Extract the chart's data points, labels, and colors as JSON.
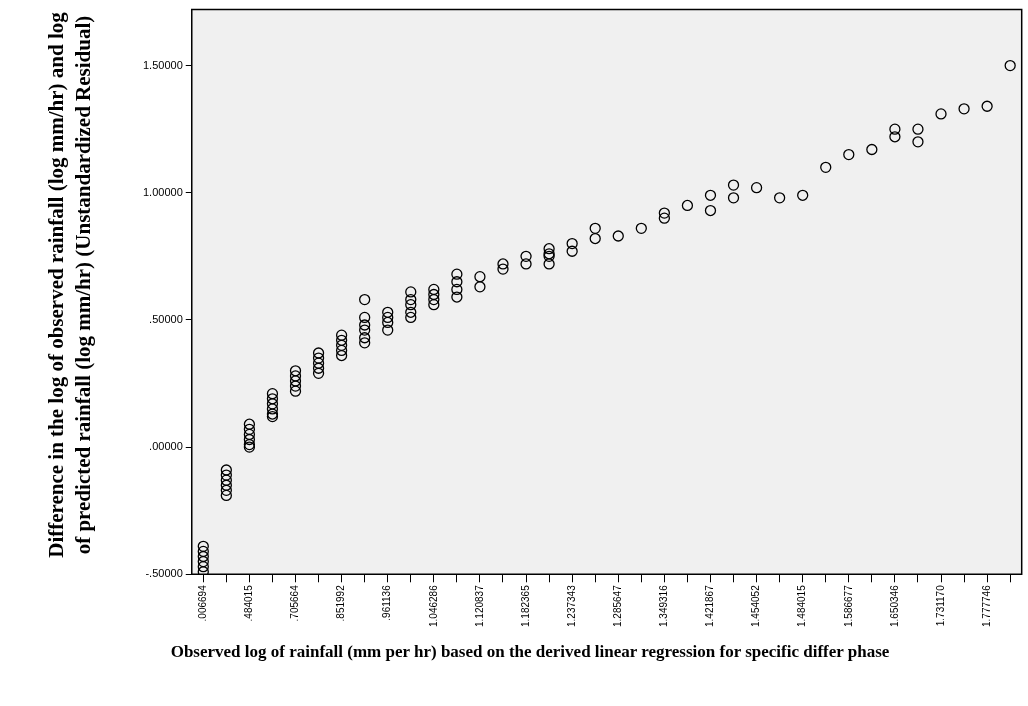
{
  "chart_data": {
    "type": "scatter",
    "xlabel": "Observed log of rainfall (mm per hr) based on the derived linear regression for specific differ phase",
    "ylabel": "Difference in the log of observed rainfall (log mm/hr) and log of predicted rainfall (log mm/hr) (Unstandardized Residual)",
    "categories": [
      ".006694",
      null,
      ".484015",
      null,
      ".705664",
      null,
      ".851992",
      null,
      ".961136",
      null,
      "1.046286",
      null,
      "1.120837",
      null,
      "1.182365",
      null,
      "1.237343",
      null,
      "1.285647",
      null,
      "1.349316",
      null,
      "1.421867",
      null,
      "1.454052",
      null,
      "1.484015",
      null,
      "1.586677",
      null,
      "1.650346",
      null,
      "1.731170",
      null,
      "1.777746",
      null
    ],
    "ylim": [
      -0.5,
      1.72
    ],
    "yticks": [
      {
        "value": -0.5,
        "label": "-.50000"
      },
      {
        "value": 0,
        "label": ".00000"
      },
      {
        "value": 0.5,
        "label": ".50000"
      },
      {
        "value": 1,
        "label": "1.00000"
      },
      {
        "value": 1.5,
        "label": "1.50000"
      }
    ],
    "grid": false,
    "legend": false,
    "marker": "circle",
    "series": [
      {
        "color": "#000000",
        "values": [
          -0.39,
          -0.09,
          0.09,
          0.21,
          0.3,
          0.37,
          0.44,
          0.58,
          0.53,
          0.61,
          0.62,
          0.68,
          0.67,
          0.72,
          0.75,
          0.78,
          0.8,
          0.86,
          0.83,
          0.86,
          0.92,
          0.95,
          0.99,
          1.03,
          1.02,
          0.98,
          0.99,
          1.1,
          1.15,
          1.17,
          1.25,
          1.25,
          1.31,
          1.33,
          1.34,
          1.5
        ]
      },
      {
        "color": "#000000",
        "values": [
          -0.41,
          -0.11,
          0.07,
          0.19,
          0.28,
          0.35,
          0.42,
          0.51,
          0.51,
          0.58,
          0.6,
          0.65,
          0.63,
          0.7,
          0.72,
          0.76,
          0.77,
          0.82,
          null,
          null,
          0.9,
          null,
          0.93,
          0.98,
          null,
          null,
          null,
          null,
          null,
          null,
          1.22,
          1.2,
          null,
          null,
          null,
          null
        ]
      },
      {
        "color": "#000000",
        "values": [
          -0.43,
          -0.13,
          0.05,
          0.17,
          0.26,
          0.33,
          0.4,
          0.48,
          0.49,
          0.56,
          0.58,
          0.62,
          null,
          null,
          null,
          0.75,
          null,
          null,
          null,
          null,
          null,
          null,
          null,
          null,
          null,
          null,
          null,
          null,
          null,
          null,
          null,
          null,
          null,
          null,
          null,
          null
        ]
      },
      {
        "color": "#000000",
        "values": [
          -0.45,
          -0.15,
          0.03,
          0.15,
          0.24,
          0.31,
          0.38,
          0.46,
          0.46,
          0.53,
          0.56,
          0.59,
          null,
          null,
          null,
          0.72,
          null,
          null,
          null,
          null,
          null,
          null,
          null,
          null,
          null,
          null,
          null,
          null,
          null,
          null,
          null,
          null,
          null,
          null,
          null,
          null
        ]
      },
      {
        "color": "#000000",
        "values": [
          -0.47,
          -0.17,
          0.01,
          0.13,
          0.22,
          0.29,
          0.36,
          0.43,
          null,
          0.51,
          null,
          null,
          null,
          null,
          null,
          null,
          null,
          null,
          null,
          null,
          null,
          null,
          null,
          null,
          null,
          null,
          null,
          null,
          null,
          null,
          null,
          null,
          null,
          null,
          null,
          null
        ]
      },
      {
        "color": "#000000",
        "values": [
          -0.49,
          -0.19,
          0.0,
          0.12,
          null,
          null,
          null,
          0.41,
          null,
          null,
          null,
          null,
          null,
          null,
          null,
          null,
          null,
          null,
          null,
          null,
          null,
          null,
          null,
          null,
          null,
          null,
          null,
          null,
          null,
          null,
          null,
          null,
          null,
          null,
          null,
          null
        ]
      }
    ]
  }
}
